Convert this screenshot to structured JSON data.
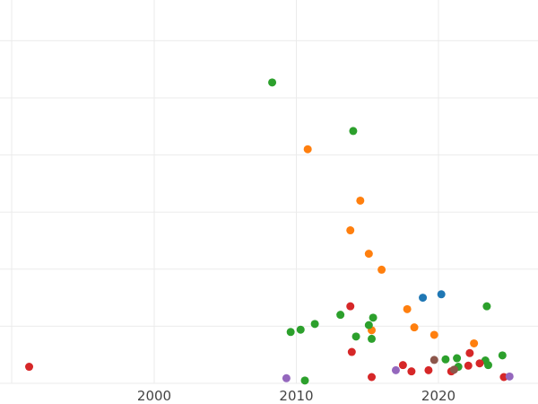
{
  "chart_data": {
    "type": "scatter",
    "title": "",
    "xlabel": "",
    "ylabel": "",
    "xlim": [
      1990,
      2027
    ],
    "ylim": [
      0,
      6.6
    ],
    "x_ticks": [
      2000,
      2010,
      2020
    ],
    "x_tick_labels": [
      "2000",
      "2010",
      "2020"
    ],
    "y_gridlines": [
      0,
      1,
      2,
      3,
      4,
      5,
      6
    ],
    "vertical_gridlines": [
      1990,
      2000,
      2010,
      2020
    ],
    "grid": true,
    "legend": "none",
    "series": [
      {
        "color": "#1f77b4",
        "points": [
          [
            2018.9,
            1.5
          ],
          [
            2020.2,
            1.56
          ]
        ]
      },
      {
        "color": "#ff7f0e",
        "points": [
          [
            2010.8,
            4.1
          ],
          [
            2014.5,
            3.2
          ],
          [
            2013.8,
            2.68
          ],
          [
            2015.1,
            2.27
          ],
          [
            2016.0,
            1.99
          ],
          [
            2017.8,
            1.3
          ],
          [
            2018.3,
            0.98
          ],
          [
            2019.7,
            0.85
          ],
          [
            2015.3,
            0.93
          ],
          [
            2022.5,
            0.7
          ]
        ]
      },
      {
        "color": "#2ca02c",
        "points": [
          [
            2008.3,
            5.27
          ],
          [
            2014.0,
            4.42
          ],
          [
            2011.3,
            1.04
          ],
          [
            2013.1,
            1.2
          ],
          [
            2015.4,
            1.15
          ],
          [
            2015.1,
            1.02
          ],
          [
            2014.2,
            0.82
          ],
          [
            2015.3,
            0.78
          ],
          [
            2010.3,
            0.94
          ],
          [
            2009.6,
            0.9
          ],
          [
            2010.6,
            0.05
          ],
          [
            2023.4,
            1.35
          ],
          [
            2020.5,
            0.42
          ],
          [
            2021.3,
            0.44
          ],
          [
            2021.4,
            0.29
          ],
          [
            2023.3,
            0.4
          ],
          [
            2023.5,
            0.32
          ],
          [
            2024.5,
            0.49
          ]
        ]
      },
      {
        "color": "#d62728",
        "points": [
          [
            1991.2,
            0.29
          ],
          [
            2013.8,
            1.35
          ],
          [
            2013.9,
            0.55
          ],
          [
            2015.3,
            0.11
          ],
          [
            2017.5,
            0.32
          ],
          [
            2018.1,
            0.21
          ],
          [
            2019.3,
            0.23
          ],
          [
            2020.9,
            0.21
          ],
          [
            2022.1,
            0.31
          ],
          [
            2022.2,
            0.53
          ],
          [
            2022.9,
            0.35
          ],
          [
            2024.6,
            0.11
          ]
        ]
      },
      {
        "color": "#9467bd",
        "points": [
          [
            2009.3,
            0.09
          ],
          [
            2017.0,
            0.23
          ],
          [
            2025.0,
            0.12
          ]
        ]
      },
      {
        "color": "#8c564b",
        "points": [
          [
            2019.7,
            0.41
          ],
          [
            2021.1,
            0.24
          ]
        ]
      }
    ]
  }
}
